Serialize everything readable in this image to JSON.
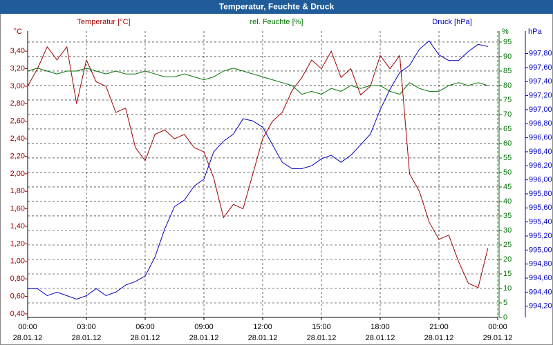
{
  "chart_data": {
    "type": "line",
    "title": "Temperatur, Feuchte & Druck",
    "y_label": "Temperatur [°C]",
    "y2_label": "rel. Feuchte [%]",
    "y3_label": "Druck [hPa]",
    "y_unit": "°C",
    "y2_unit": "%",
    "y3_unit": "hPa",
    "grid": true,
    "x": [
      0,
      0.5,
      1,
      1.5,
      2,
      2.5,
      3,
      3.5,
      4,
      4.5,
      5,
      5.5,
      6,
      6.5,
      7,
      7.5,
      8,
      8.5,
      9,
      9.5,
      10,
      10.5,
      11,
      11.5,
      12,
      12.5,
      13,
      13.5,
      14,
      14.5,
      15,
      15.5,
      16,
      16.5,
      17,
      17.5,
      18,
      18.5,
      19,
      19.5,
      20,
      20.5,
      21,
      21.5,
      22,
      22.5,
      23,
      23.5
    ],
    "xlim": [
      0,
      24
    ],
    "xticks": [
      {
        "value": 0,
        "label": "00:00"
      },
      {
        "value": 3,
        "label": "03:00"
      },
      {
        "value": 6,
        "label": "06:00"
      },
      {
        "value": 9,
        "label": "09:00"
      },
      {
        "value": 12,
        "label": "12:00"
      },
      {
        "value": 15,
        "label": "15:00"
      },
      {
        "value": 18,
        "label": "18:00"
      },
      {
        "value": 21,
        "label": "21:00"
      },
      {
        "value": 24,
        "label": "00:00"
      }
    ],
    "xtick_dates": [
      "28.01.12",
      "28.01.12",
      "28.01.12",
      "28.01.12",
      "28.01.12",
      "28.01.12",
      "28.01.12",
      "28.01.12",
      "29.01.12"
    ],
    "ylim": [
      0.36,
      3.63
    ],
    "yticks": [
      {
        "value": 0.4,
        "label": "0,40"
      },
      {
        "value": 0.6,
        "label": "0,60"
      },
      {
        "value": 0.8,
        "label": "0,80"
      },
      {
        "value": 1.0,
        "label": "1,00"
      },
      {
        "value": 1.2,
        "label": "1,20"
      },
      {
        "value": 1.4,
        "label": "1,40"
      },
      {
        "value": 1.6,
        "label": "1,60"
      },
      {
        "value": 1.8,
        "label": "1,80"
      },
      {
        "value": 2.0,
        "label": "2,00"
      },
      {
        "value": 2.2,
        "label": "2,20"
      },
      {
        "value": 2.4,
        "label": "2,40"
      },
      {
        "value": 2.6,
        "label": "2,60"
      },
      {
        "value": 2.8,
        "label": "2,80"
      },
      {
        "value": 3.0,
        "label": "3,00"
      },
      {
        "value": 3.2,
        "label": "3,20"
      },
      {
        "value": 3.4,
        "label": "3,40"
      }
    ],
    "y2lim": [
      0,
      98.8
    ],
    "y2ticks": [
      0,
      5,
      10,
      15,
      20,
      25,
      30,
      35,
      40,
      45,
      50,
      55,
      60,
      65,
      70,
      75,
      80,
      85,
      90,
      95
    ],
    "y3lim": [
      994.04,
      998.12
    ],
    "y3ticks": [
      {
        "value": 994.2,
        "label": "994,20"
      },
      {
        "value": 994.4,
        "label": "994,40"
      },
      {
        "value": 994.6,
        "label": "994,60"
      },
      {
        "value": 994.8,
        "label": "994,80"
      },
      {
        "value": 995.0,
        "label": "995,00"
      },
      {
        "value": 995.2,
        "label": "995,20"
      },
      {
        "value": 995.4,
        "label": "995,40"
      },
      {
        "value": 995.6,
        "label": "995,60"
      },
      {
        "value": 995.8,
        "label": "995,80"
      },
      {
        "value": 996.0,
        "label": "996,00"
      },
      {
        "value": 996.2,
        "label": "996,20"
      },
      {
        "value": 996.4,
        "label": "996,40"
      },
      {
        "value": 996.6,
        "label": "996,60"
      },
      {
        "value": 996.8,
        "label": "996,80"
      },
      {
        "value": 997.0,
        "label": "997,00"
      },
      {
        "value": 997.2,
        "label": "997,20"
      },
      {
        "value": 997.4,
        "label": "997,40"
      },
      {
        "value": 997.6,
        "label": "997,60"
      },
      {
        "value": 997.8,
        "label": "997,80"
      }
    ],
    "series": [
      {
        "name": "Temperatur",
        "color": "#a00000",
        "axis": "y",
        "values": [
          3.0,
          3.2,
          3.45,
          3.3,
          3.45,
          2.8,
          3.3,
          3.05,
          3.0,
          2.7,
          2.75,
          2.3,
          2.15,
          2.45,
          2.5,
          2.4,
          2.45,
          2.3,
          2.25,
          1.95,
          1.5,
          1.65,
          1.6,
          2.0,
          2.4,
          2.6,
          2.7,
          2.95,
          3.1,
          3.3,
          3.2,
          3.4,
          3.1,
          3.2,
          2.9,
          3.0,
          3.35,
          3.2,
          3.35,
          2.0,
          1.8,
          1.45,
          1.25,
          1.3,
          1.0,
          0.75,
          0.7,
          1.15
        ]
      },
      {
        "name": "rel. Feuchte",
        "color": "#007000",
        "axis": "y2",
        "values": [
          85,
          86,
          85,
          84,
          85,
          85,
          86,
          85,
          84,
          85,
          84,
          84,
          85,
          84,
          83,
          83,
          84,
          83,
          82,
          83,
          85,
          86,
          85,
          84,
          83,
          82,
          81,
          80,
          77,
          78,
          77,
          79,
          78,
          80,
          79,
          80,
          80,
          78,
          77,
          81,
          79,
          78,
          78,
          80,
          81,
          80,
          81,
          80
        ]
      },
      {
        "name": "Druck",
        "color": "#0000c0",
        "axis": "y3",
        "values": [
          994.45,
          994.45,
          994.35,
          994.4,
          994.35,
          994.3,
          994.35,
          994.45,
          994.35,
          994.4,
          994.5,
          994.55,
          994.63,
          994.9,
          995.3,
          995.62,
          995.71,
          995.91,
          996.01,
          996.4,
          996.55,
          996.65,
          996.87,
          996.84,
          996.75,
          996.5,
          996.25,
          996.16,
          996.16,
          996.2,
          996.3,
          996.35,
          996.25,
          996.35,
          996.5,
          996.65,
          997.0,
          997.29,
          997.53,
          997.63,
          997.86,
          997.98,
          997.78,
          997.7,
          997.7,
          997.83,
          997.93,
          997.9
        ]
      }
    ]
  }
}
